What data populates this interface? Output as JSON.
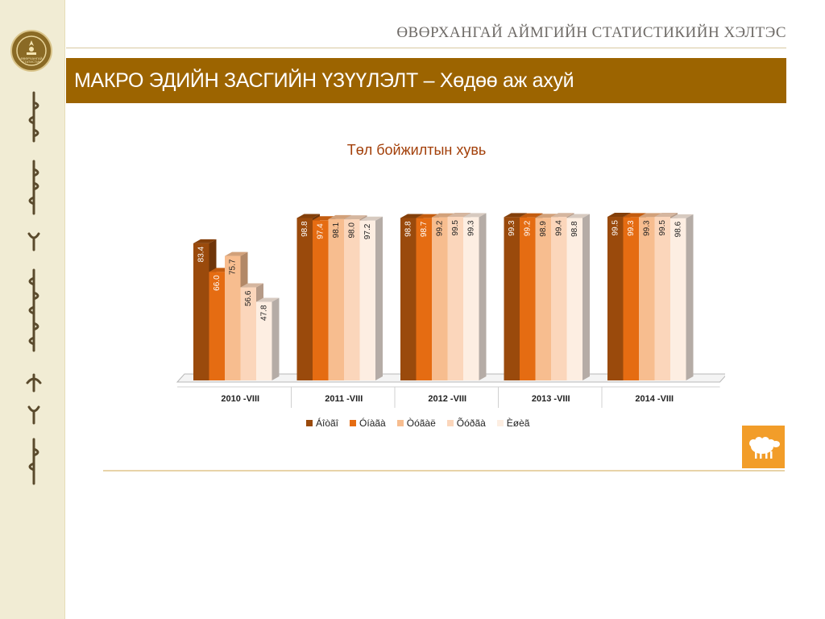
{
  "header": {
    "org_title": "ӨВӨРХАНГАЙ АЙМГИЙН СТАТИСТИКИЙН ХЭЛТЭС",
    "banner_title": "МАКРО ЭДИЙН ЗАСГИЙН ҮЗҮҮЛЭЛТ – Хөдөө аж ахуй"
  },
  "logo": {
    "line1": "ӨВӨРХАНГАЙ",
    "line2": "СТАТИСТИК"
  },
  "colors": {
    "banner": "#9c6400",
    "series": [
      "#9a4a0c",
      "#e56c12",
      "#f7bd8f",
      "#fbd6bb",
      "#fdeee2"
    ]
  },
  "chart_data": {
    "type": "bar",
    "title": "Төл бойжилтын хувь",
    "categories": [
      "2010 -VIII",
      "2011 -VIII",
      "2012 -VIII",
      "2013 -VIII",
      "2014 -VIII"
    ],
    "series": [
      {
        "name": "Áîòãî",
        "values": [
          83.4,
          98.8,
          98.8,
          99.3,
          99.5
        ]
      },
      {
        "name": "Óíàãà",
        "values": [
          66.0,
          97.4,
          98.7,
          99.2,
          99.3
        ]
      },
      {
        "name": "Òóãàë",
        "values": [
          75.7,
          98.1,
          99.2,
          98.9,
          99.3
        ]
      },
      {
        "name": "Õóðãà",
        "values": [
          56.6,
          98.0,
          99.5,
          99.4,
          99.5
        ]
      },
      {
        "name": "Èøèã",
        "values": [
          47.8,
          97.2,
          99.3,
          98.8,
          98.6
        ]
      }
    ],
    "ylim": [
      0,
      100
    ],
    "grid": false,
    "legend": "bottom"
  }
}
